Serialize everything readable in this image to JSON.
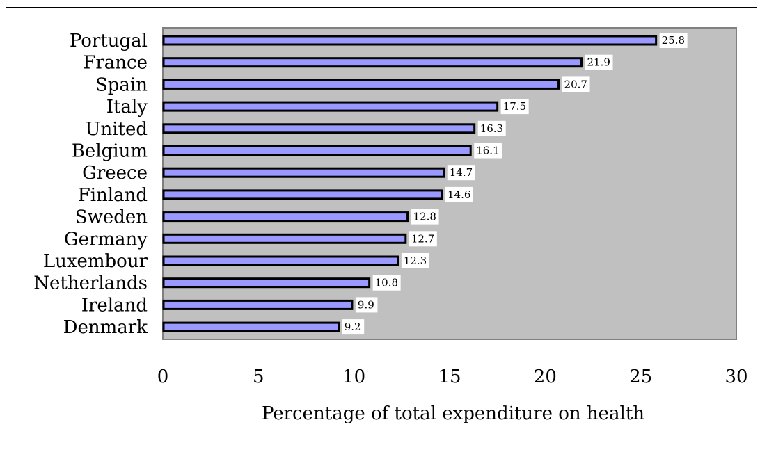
{
  "chart_data": {
    "type": "bar",
    "orientation": "horizontal",
    "categories": [
      "Portugal",
      "France",
      "Spain",
      "Italy",
      "United",
      "Belgium",
      "Greece",
      "Finland",
      "Sweden",
      "Germany",
      "Luxembour",
      "Netherlands",
      "Ireland",
      "Denmark"
    ],
    "values": [
      25.8,
      21.9,
      20.7,
      17.5,
      16.3,
      16.1,
      14.7,
      14.6,
      12.8,
      12.7,
      12.3,
      10.8,
      9.9,
      9.2
    ],
    "data_labels": [
      "25.8",
      "21.9",
      "20.7",
      "17.5",
      "16.3",
      "16.1",
      "14.7",
      "14.6",
      "12.8",
      "12.7",
      "12.3",
      "10.8",
      "9.9",
      "9.2"
    ],
    "title": "",
    "xlabel": "Percentage of total expenditure on health",
    "ylabel": "",
    "xlim": [
      0,
      30
    ],
    "x_ticks": [
      "0",
      "5",
      "10",
      "15",
      "20",
      "25",
      "30"
    ],
    "grid": false,
    "legend": "none",
    "colors": {
      "bar_fill": "#9999FF",
      "bar_stroke": "#000000",
      "plot_background": "#C0C0C0",
      "plot_border": "#808080",
      "label_background": "#FFFFFF"
    }
  }
}
